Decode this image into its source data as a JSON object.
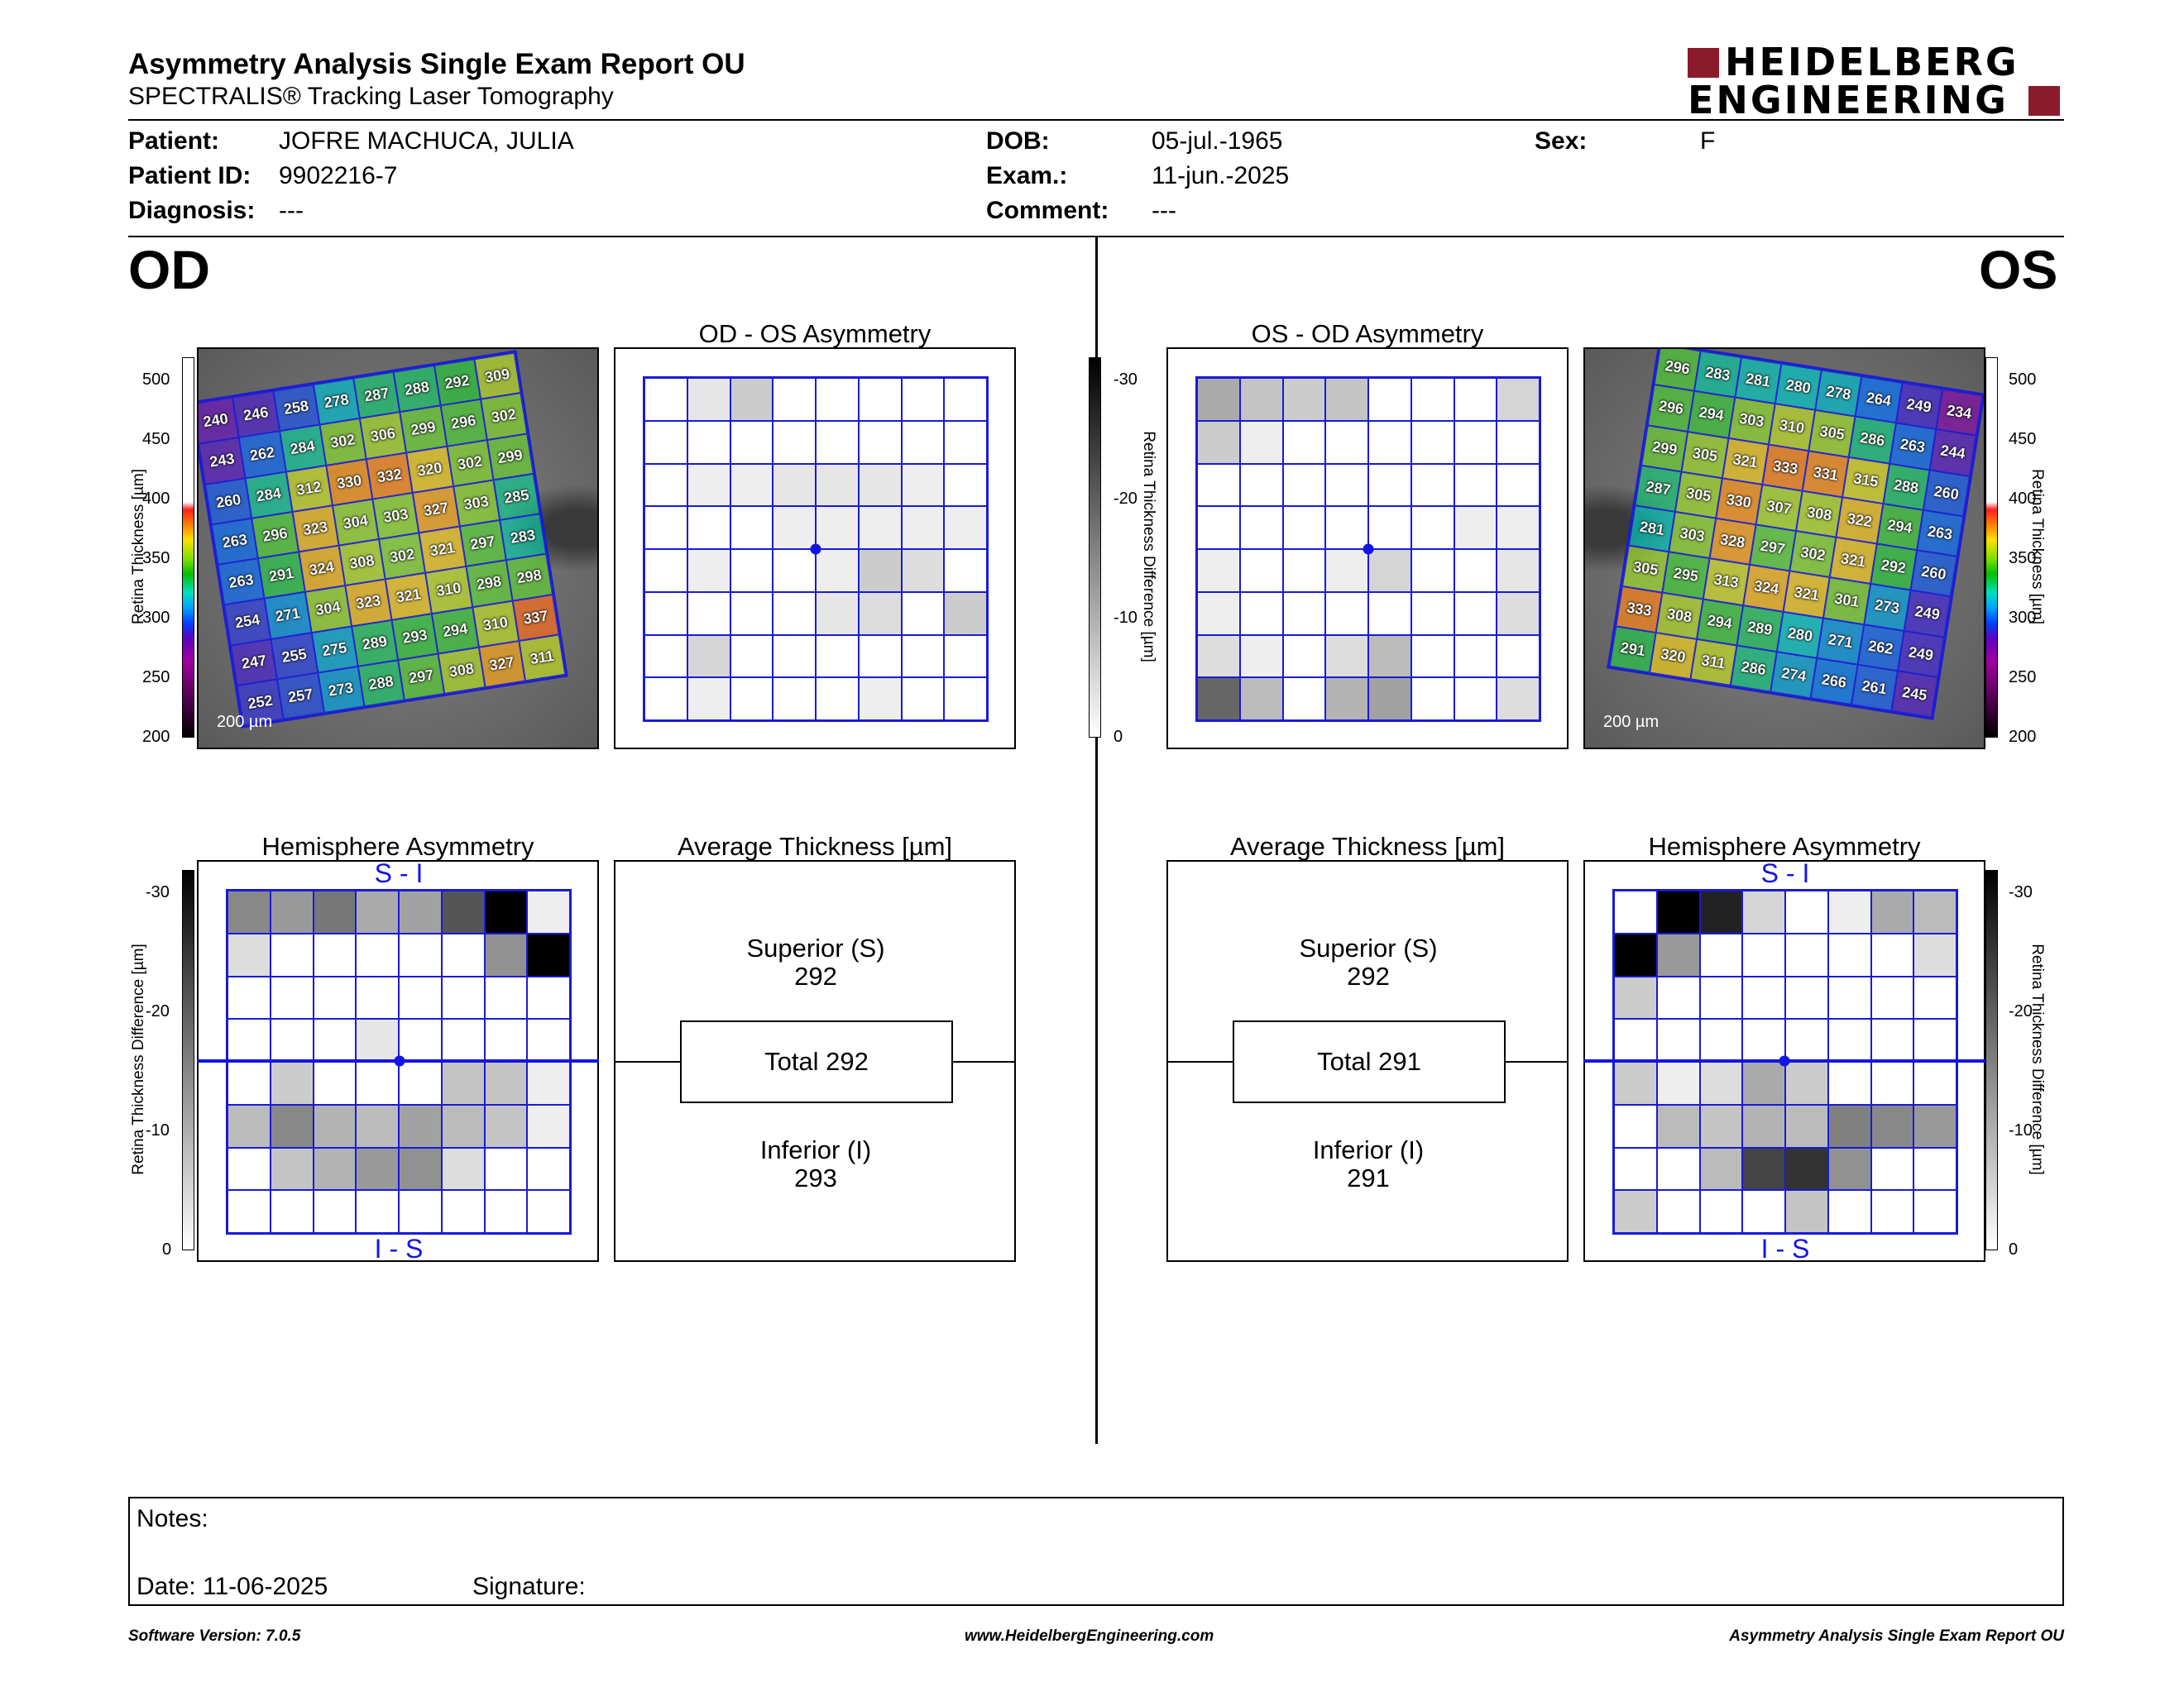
{
  "header": {
    "title": "Asymmetry Analysis Single Exam Report OU",
    "subtitle": "SPECTRALIS® Tracking Laser Tomography",
    "logo_line1": "HEIDELBERG",
    "logo_line2": "ENGINEERING"
  },
  "patient": {
    "patient_label": "Patient:",
    "patient_value": "JOFRE MACHUCA, JULIA",
    "id_label": "Patient ID:",
    "id_value": "9902216-7",
    "diagnosis_label": "Diagnosis:",
    "diagnosis_value": "---",
    "dob_label": "DOB:",
    "dob_value": "05-jul.-1965",
    "exam_label": "Exam.:",
    "exam_value": "11-jun.-2025",
    "comment_label": "Comment:",
    "comment_value": "---",
    "sex_label": "Sex:",
    "sex_value": "F"
  },
  "od": {
    "eye_label": "OD",
    "thickness_map": [
      [
        240,
        246,
        258,
        278,
        287,
        288,
        292,
        309
      ],
      [
        243,
        262,
        284,
        302,
        306,
        299,
        296,
        302
      ],
      [
        260,
        284,
        312,
        330,
        332,
        320,
        302,
        299
      ],
      [
        263,
        296,
        323,
        304,
        303,
        327,
        303,
        285
      ],
      [
        263,
        291,
        324,
        308,
        302,
        321,
        297,
        283
      ],
      [
        254,
        271,
        304,
        323,
        321,
        310,
        298,
        298
      ],
      [
        247,
        255,
        275,
        289,
        293,
        294,
        310,
        337
      ],
      [
        252,
        257,
        273,
        288,
        297,
        308,
        327,
        311
      ]
    ],
    "scale_label": "200 µm",
    "asymmetry_title": "OD - OS Asymmetry",
    "asymmetry_grid": [
      [
        0,
        3,
        6,
        0,
        0,
        0,
        0,
        0
      ],
      [
        0,
        0,
        0,
        0,
        0,
        0,
        0,
        0
      ],
      [
        0,
        2,
        2,
        3,
        3,
        3,
        2,
        0
      ],
      [
        0,
        0,
        0,
        2,
        2,
        2,
        2,
        2
      ],
      [
        0,
        2,
        0,
        0,
        2,
        6,
        4,
        0
      ],
      [
        0,
        0,
        0,
        0,
        3,
        4,
        0,
        6
      ],
      [
        0,
        5,
        0,
        0,
        0,
        0,
        0,
        0
      ],
      [
        0,
        2,
        0,
        0,
        0,
        2,
        0,
        0
      ]
    ],
    "hemisphere_title": "Hemisphere Asymmetry",
    "hemi_top": "S - I",
    "hemi_bottom": "I - S",
    "hemisphere_grid": [
      [
        14,
        12,
        16,
        10,
        11,
        20,
        30,
        2
      ],
      [
        4,
        0,
        0,
        0,
        0,
        0,
        13,
        30
      ],
      [
        0,
        0,
        0,
        0,
        0,
        0,
        0,
        0
      ],
      [
        0,
        0,
        0,
        3,
        0,
        0,
        0,
        0
      ],
      [
        0,
        6,
        0,
        0,
        0,
        7,
        7,
        2
      ],
      [
        8,
        14,
        9,
        8,
        11,
        8,
        7,
        2
      ],
      [
        0,
        7,
        9,
        12,
        13,
        4,
        0,
        0
      ],
      [
        0,
        0,
        0,
        0,
        0,
        0,
        0,
        0
      ]
    ],
    "avg_title": "Average Thickness [µm]",
    "superior_label": "Superior (S)",
    "superior_value": "292",
    "total_label": "Total 292",
    "inferior_label": "Inferior (I)",
    "inferior_value": "293"
  },
  "os": {
    "eye_label": "OS",
    "thickness_map": [
      [
        296,
        283,
        281,
        280,
        278,
        264,
        249,
        234
      ],
      [
        296,
        294,
        303,
        310,
        305,
        286,
        263,
        244
      ],
      [
        299,
        305,
        321,
        333,
        331,
        315,
        288,
        260
      ],
      [
        287,
        305,
        330,
        307,
        308,
        322,
        294,
        263
      ],
      [
        281,
        303,
        328,
        297,
        302,
        321,
        292,
        260
      ],
      [
        305,
        295,
        313,
        324,
        321,
        301,
        273,
        249
      ],
      [
        333,
        308,
        294,
        289,
        280,
        271,
        262,
        249
      ],
      [
        291,
        320,
        311,
        286,
        274,
        266,
        261,
        245
      ]
    ],
    "scale_label": "200 µm",
    "asymmetry_title": "OS - OD Asymmetry",
    "asymmetry_grid": [
      [
        10,
        7,
        6,
        7,
        0,
        0,
        0,
        5
      ],
      [
        6,
        2,
        0,
        0,
        0,
        0,
        0,
        0
      ],
      [
        0,
        0,
        0,
        0,
        0,
        0,
        0,
        0
      ],
      [
        0,
        0,
        0,
        0,
        0,
        0,
        2,
        2
      ],
      [
        2,
        0,
        0,
        2,
        5,
        0,
        0,
        3
      ],
      [
        2,
        0,
        0,
        0,
        0,
        0,
        0,
        4
      ],
      [
        4,
        2,
        0,
        4,
        8,
        0,
        0,
        0
      ],
      [
        18,
        8,
        0,
        9,
        11,
        0,
        0,
        4
      ]
    ],
    "hemisphere_title": "Hemisphere Asymmetry",
    "hemi_top": "S - I",
    "hemi_bottom": "I - S",
    "hemisphere_grid": [
      [
        0,
        30,
        26,
        5,
        0,
        2,
        10,
        8
      ],
      [
        30,
        12,
        0,
        0,
        0,
        0,
        0,
        4
      ],
      [
        6,
        0,
        0,
        0,
        0,
        0,
        0,
        0
      ],
      [
        0,
        0,
        0,
        0,
        0,
        0,
        0,
        0
      ],
      [
        6,
        2,
        4,
        10,
        6,
        0,
        0,
        0
      ],
      [
        0,
        8,
        7,
        9,
        8,
        15,
        14,
        12
      ],
      [
        0,
        0,
        8,
        22,
        24,
        13,
        0,
        0
      ],
      [
        6,
        0,
        0,
        0,
        7,
        0,
        0,
        0
      ]
    ],
    "avg_title": "Average Thickness [µm]",
    "superior_label": "Superior (S)",
    "superior_value": "292",
    "total_label": "Total 291",
    "inferior_label": "Inferior (I)",
    "inferior_value": "291"
  },
  "colorbars": {
    "thickness_ticks": [
      "500",
      "450",
      "400",
      "350",
      "300",
      "250",
      "200"
    ],
    "thickness_label": "Retina Thickness [µm]",
    "difference_ticks": [
      "-30",
      "-20",
      "-10",
      "0"
    ],
    "difference_label": "Retina Thickness Difference [µm]"
  },
  "notes": {
    "notes_label": "Notes:",
    "date_label": "Date: 11-06-2025",
    "signature_label": "Signature:"
  },
  "footer": {
    "software": "Software Version: 7.0.5",
    "website": "www.HeidelbergEngineering.com",
    "report": "Asymmetry Analysis Single Exam Report OU"
  },
  "colors": {
    "grid_blue": "#1a1ad8",
    "logo_red": "#8b1a2b"
  }
}
